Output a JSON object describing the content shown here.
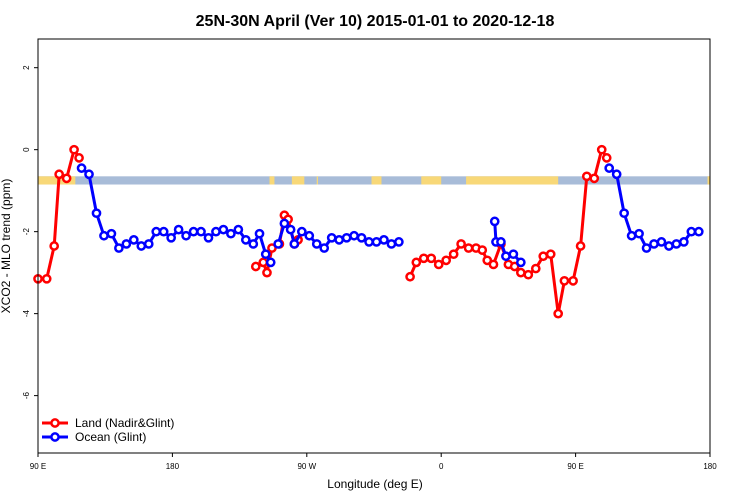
{
  "chart_data": {
    "type": "line",
    "title": "25N-30N April (Ver 10)   2015-01-01 to 2020-12-18",
    "xlabel": "Longitude (deg E)",
    "ylabel": "XCO2 - MLO trend (ppm)",
    "xlim": [
      -90,
      180
    ],
    "ylim": [
      -7.4,
      2.7
    ],
    "x_ticks": [
      {
        "value": -90,
        "label": "90 E"
      },
      {
        "value": -36,
        "label": "180"
      },
      {
        "value": 18,
        "label": "90 W"
      },
      {
        "value": 72,
        "label": "0"
      },
      {
        "value": 126,
        "label": "90 E"
      },
      {
        "value": 180,
        "label": "180"
      }
    ],
    "y_ticks": [
      2,
      0,
      -2,
      -4,
      -6
    ],
    "grid": false,
    "legend_position": "bottom-left",
    "band": {
      "y_top": -0.65,
      "y_bottom": -0.85,
      "sea_color": "#a8bcd8",
      "land_color": "#f8d878"
    },
    "band_land_ranges": [
      [
        -90,
        -75
      ],
      [
        3,
        5
      ],
      [
        12,
        17
      ],
      [
        22,
        22.5
      ],
      [
        44,
        48
      ],
      [
        64,
        72
      ],
      [
        82,
        119
      ],
      [
        179,
        180
      ]
    ],
    "series": [
      {
        "name": "Land (Nadir&Glint)",
        "color": "#ff0000",
        "segments": [
          [
            [
              -90,
              -3.15
            ],
            [
              -86.5,
              -3.15
            ],
            [
              -83.5,
              -2.35
            ],
            [
              -81.5,
              -0.6
            ],
            [
              -78.5,
              -0.7
            ],
            [
              -75.5,
              0.0
            ],
            [
              -73.5,
              -0.2
            ]
          ],
          [
            [
              -2.5,
              -2.85
            ],
            [
              0.5,
              -2.75
            ],
            [
              2,
              -3.0
            ],
            [
              4,
              -2.4
            ],
            [
              7,
              -2.3
            ],
            [
              9,
              -1.6
            ],
            [
              10.5,
              -1.7
            ],
            [
              13,
              -2.3
            ],
            [
              14.5,
              -2.2
            ]
          ],
          [
            [
              59.5,
              -3.1
            ],
            [
              62,
              -2.75
            ],
            [
              65,
              -2.65
            ],
            [
              68,
              -2.65
            ],
            [
              71,
              -2.8
            ],
            [
              74,
              -2.7
            ],
            [
              77,
              -2.55
            ],
            [
              80,
              -2.3
            ],
            [
              83,
              -2.4
            ],
            [
              86,
              -2.4
            ],
            [
              88.5,
              -2.45
            ],
            [
              90.5,
              -2.7
            ],
            [
              93,
              -2.8
            ],
            [
              96,
              -2.3
            ],
            [
              99,
              -2.8
            ],
            [
              101.5,
              -2.85
            ],
            [
              104,
              -3.0
            ],
            [
              107,
              -3.05
            ],
            [
              110,
              -2.9
            ],
            [
              113,
              -2.6
            ],
            [
              116,
              -2.55
            ],
            [
              119,
              -4.0
            ],
            [
              121.5,
              -3.2
            ],
            [
              125,
              -3.2
            ],
            [
              128,
              -2.35
            ],
            [
              130.5,
              -0.65
            ],
            [
              133.5,
              -0.7
            ],
            [
              136.5,
              0.0
            ],
            [
              138.5,
              -0.2
            ]
          ]
        ]
      },
      {
        "name": "Ocean (Glint)",
        "color": "#0000ff",
        "segments": [
          [
            [
              -72.5,
              -0.45
            ],
            [
              -69.5,
              -0.6
            ],
            [
              -66.5,
              -1.55
            ],
            [
              -63.5,
              -2.1
            ],
            [
              -60.5,
              -2.05
            ],
            [
              -57.5,
              -2.4
            ],
            [
              -54.5,
              -2.3
            ],
            [
              -51.5,
              -2.2
            ],
            [
              -48.5,
              -2.35
            ],
            [
              -45.5,
              -2.3
            ],
            [
              -42.5,
              -2.0
            ],
            [
              -39.5,
              -2.0
            ],
            [
              -36.5,
              -2.15
            ],
            [
              -33.5,
              -1.95
            ],
            [
              -30.5,
              -2.1
            ],
            [
              -27.5,
              -2.0
            ],
            [
              -24.5,
              -2.0
            ],
            [
              -21.5,
              -2.15
            ],
            [
              -18.5,
              -2.0
            ],
            [
              -15.5,
              -1.95
            ],
            [
              -12.5,
              -2.05
            ],
            [
              -9.5,
              -1.95
            ],
            [
              -6.5,
              -2.2
            ],
            [
              -3.5,
              -2.3
            ],
            [
              -1,
              -2.05
            ],
            [
              1.5,
              -2.55
            ],
            [
              3.5,
              -2.75
            ]
          ],
          [
            [
              6.5,
              -2.3
            ],
            [
              9,
              -1.8
            ],
            [
              11.5,
              -1.95
            ],
            [
              13,
              -2.3
            ],
            [
              16,
              -2.0
            ],
            [
              19,
              -2.1
            ],
            [
              22,
              -2.3
            ],
            [
              25,
              -2.4
            ],
            [
              28,
              -2.15
            ],
            [
              31,
              -2.2
            ],
            [
              34,
              -2.15
            ],
            [
              37,
              -2.1
            ],
            [
              40,
              -2.15
            ],
            [
              43,
              -2.25
            ],
            [
              46,
              -2.25
            ],
            [
              49,
              -2.2
            ],
            [
              52,
              -2.3
            ],
            [
              55,
              -2.25
            ]
          ],
          [
            [
              93.5,
              -1.75
            ],
            [
              94,
              -2.25
            ]
          ],
          [
            [
              96,
              -2.25
            ],
            [
              98,
              -2.6
            ],
            [
              101,
              -2.55
            ],
            [
              104,
              -2.75
            ]
          ],
          [
            [
              139.5,
              -0.45
            ],
            [
              142.5,
              -0.6
            ],
            [
              145.5,
              -1.55
            ],
            [
              148.5,
              -2.1
            ],
            [
              151.5,
              -2.05
            ],
            [
              154.5,
              -2.4
            ],
            [
              157.5,
              -2.3
            ],
            [
              160.5,
              -2.25
            ],
            [
              163.5,
              -2.35
            ],
            [
              166.5,
              -2.3
            ],
            [
              169.5,
              -2.25
            ],
            [
              172.5,
              -2.0
            ],
            [
              175.5,
              -2.0
            ]
          ]
        ]
      }
    ]
  }
}
